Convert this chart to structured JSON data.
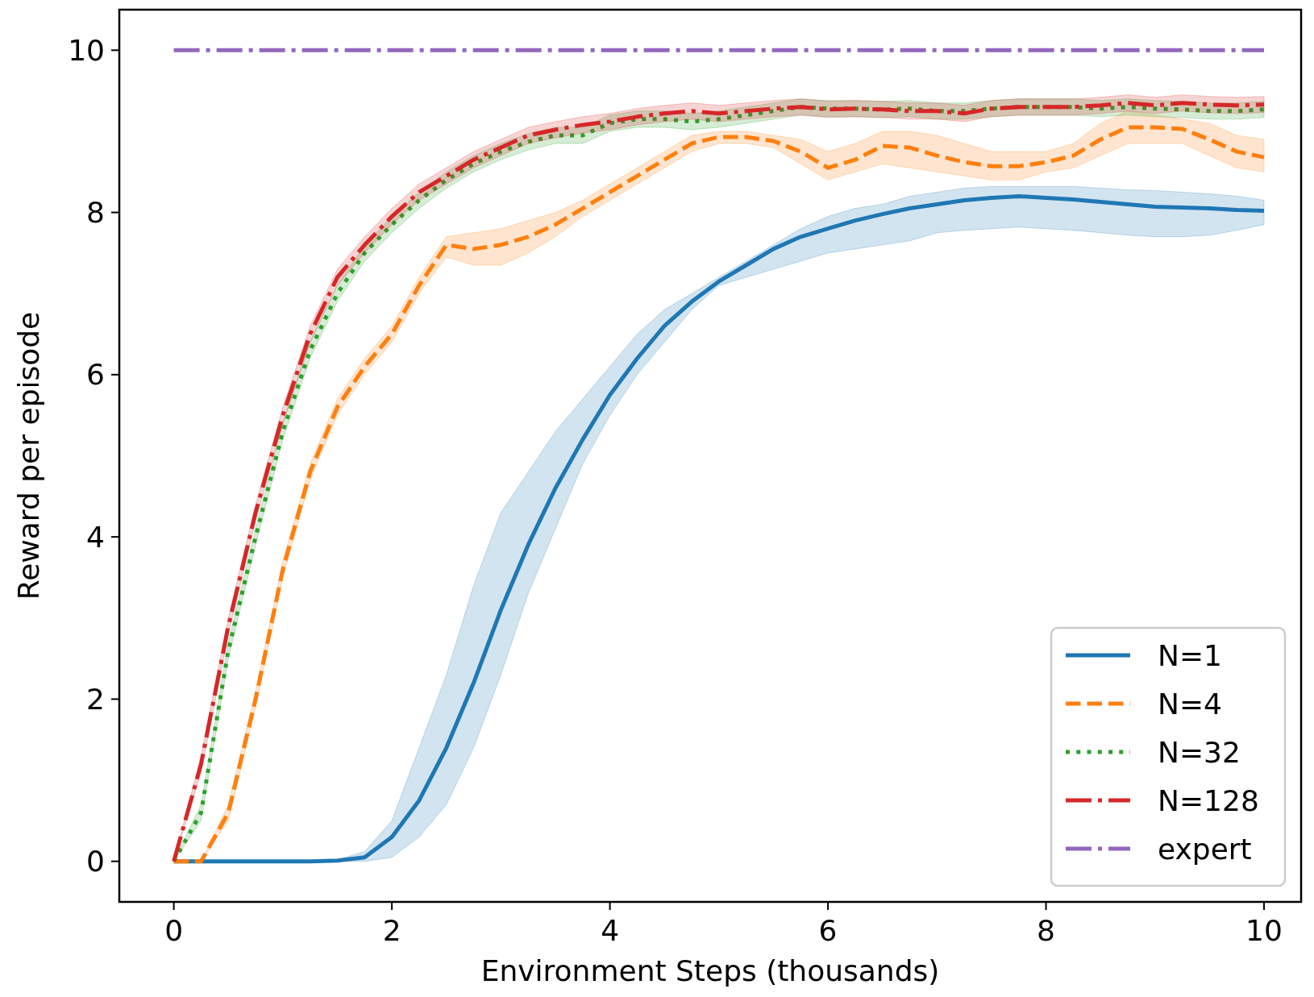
{
  "chart_data": {
    "type": "line",
    "xlabel": "Environment Steps (thousands)",
    "ylabel": "Reward per episode",
    "x": [
      0,
      0.25,
      0.5,
      0.75,
      1,
      1.25,
      1.5,
      1.75,
      2,
      2.25,
      2.5,
      2.75,
      3,
      3.25,
      3.5,
      3.75,
      4,
      4.25,
      4.5,
      4.75,
      5,
      5.25,
      5.5,
      5.75,
      6,
      6.25,
      6.5,
      6.75,
      7,
      7.25,
      7.5,
      7.75,
      8,
      8.25,
      8.5,
      8.75,
      9,
      9.25,
      9.5,
      9.75,
      10
    ],
    "xlim": [
      -0.5,
      10.34
    ],
    "ylim": [
      -0.5,
      10.5
    ],
    "xticks": [
      0,
      2,
      4,
      6,
      8,
      10
    ],
    "yticks": [
      0,
      2,
      4,
      6,
      8,
      10
    ],
    "grid": false,
    "legend": "bottom right",
    "series": [
      {
        "name": "N=1",
        "color": "#1f77b4",
        "line_style": "solid",
        "values": [
          0,
          0,
          0,
          0,
          0,
          0,
          0.01,
          0.05,
          0.3,
          0.75,
          1.4,
          2.2,
          3.1,
          3.9,
          4.6,
          5.2,
          5.75,
          6.2,
          6.6,
          6.9,
          7.15,
          7.35,
          7.55,
          7.7,
          7.8,
          7.9,
          7.98,
          8.05,
          8.1,
          8.15,
          8.18,
          8.2,
          8.18,
          8.16,
          8.13,
          8.1,
          8.07,
          8.06,
          8.05,
          8.03,
          8.02
        ],
        "lower": [
          0,
          0,
          0,
          0,
          0,
          0,
          0,
          0,
          0.05,
          0.3,
          0.7,
          1.4,
          2.3,
          3.3,
          4.1,
          4.9,
          5.5,
          6.0,
          6.4,
          6.8,
          7.1,
          7.2,
          7.3,
          7.4,
          7.5,
          7.55,
          7.6,
          7.65,
          7.75,
          7.78,
          7.8,
          7.82,
          7.8,
          7.78,
          7.75,
          7.72,
          7.7,
          7.7,
          7.72,
          7.78,
          7.85
        ],
        "upper": [
          0,
          0,
          0,
          0,
          0,
          0,
          0.02,
          0.12,
          0.5,
          1.4,
          2.3,
          3.4,
          4.3,
          4.8,
          5.3,
          5.7,
          6.1,
          6.5,
          6.8,
          7.0,
          7.2,
          7.4,
          7.6,
          7.8,
          7.95,
          8.05,
          8.1,
          8.2,
          8.25,
          8.3,
          8.32,
          8.32,
          8.32,
          8.32,
          8.3,
          8.28,
          8.27,
          8.25,
          8.23,
          8.2,
          8.15
        ]
      },
      {
        "name": "N=4",
        "color": "#ff7f0e",
        "line_style": "dashed",
        "values": [
          0,
          0,
          0.6,
          2.0,
          3.6,
          4.8,
          5.6,
          6.1,
          6.5,
          7.1,
          7.6,
          7.55,
          7.6,
          7.7,
          7.85,
          8.05,
          8.25,
          8.45,
          8.65,
          8.85,
          8.93,
          8.93,
          8.88,
          8.75,
          8.55,
          8.65,
          8.82,
          8.8,
          8.7,
          8.62,
          8.57,
          8.57,
          8.62,
          8.7,
          8.9,
          9.05,
          9.05,
          9.03,
          8.9,
          8.75,
          8.68
        ],
        "lower": [
          0,
          0,
          0.5,
          1.9,
          3.5,
          4.7,
          5.5,
          6.0,
          6.4,
          7.0,
          7.45,
          7.35,
          7.35,
          7.5,
          7.7,
          7.95,
          8.15,
          8.35,
          8.55,
          8.75,
          8.85,
          8.85,
          8.8,
          8.6,
          8.4,
          8.5,
          8.6,
          8.55,
          8.5,
          8.45,
          8.4,
          8.4,
          8.5,
          8.55,
          8.7,
          8.85,
          8.85,
          8.85,
          8.7,
          8.55,
          8.5
        ],
        "upper": [
          0,
          0,
          0.7,
          2.1,
          3.7,
          4.9,
          5.7,
          6.2,
          6.6,
          7.2,
          7.7,
          7.75,
          7.8,
          7.9,
          8.0,
          8.15,
          8.35,
          8.55,
          8.75,
          8.95,
          9.0,
          9.0,
          8.95,
          8.9,
          8.75,
          8.85,
          9.0,
          9.0,
          8.95,
          8.85,
          8.75,
          8.75,
          8.75,
          8.85,
          9.1,
          9.25,
          9.2,
          9.15,
          9.1,
          8.95,
          8.9
        ]
      },
      {
        "name": "N=32",
        "color": "#2ca02c",
        "line_style": "dotted",
        "values": [
          0,
          0.6,
          2.6,
          4.0,
          5.3,
          6.3,
          7.0,
          7.5,
          7.85,
          8.15,
          8.4,
          8.6,
          8.75,
          8.87,
          8.95,
          8.95,
          9.1,
          9.15,
          9.15,
          9.12,
          9.15,
          9.2,
          9.25,
          9.3,
          9.28,
          9.28,
          9.27,
          9.28,
          9.25,
          9.25,
          9.28,
          9.3,
          9.3,
          9.3,
          9.28,
          9.3,
          9.28,
          9.27,
          9.25,
          9.25,
          9.27
        ],
        "lower": [
          0,
          0.5,
          2.5,
          3.9,
          5.2,
          6.2,
          6.9,
          7.4,
          7.75,
          8.05,
          8.3,
          8.5,
          8.65,
          8.77,
          8.85,
          8.85,
          9.0,
          9.05,
          9.05,
          9.02,
          9.05,
          9.1,
          9.15,
          9.2,
          9.18,
          9.18,
          9.17,
          9.18,
          9.15,
          9.15,
          9.18,
          9.2,
          9.2,
          9.2,
          9.18,
          9.2,
          9.18,
          9.17,
          9.15,
          9.15,
          9.17
        ],
        "upper": [
          0,
          0.7,
          2.7,
          4.1,
          5.4,
          6.4,
          7.1,
          7.6,
          7.95,
          8.25,
          8.5,
          8.7,
          8.85,
          8.97,
          9.05,
          9.05,
          9.2,
          9.25,
          9.25,
          9.22,
          9.25,
          9.3,
          9.35,
          9.4,
          9.38,
          9.38,
          9.37,
          9.38,
          9.35,
          9.35,
          9.38,
          9.4,
          9.4,
          9.4,
          9.38,
          9.4,
          9.38,
          9.37,
          9.35,
          9.35,
          9.37
        ]
      },
      {
        "name": "N=128",
        "color": "#d62728",
        "line_style": "dashdot",
        "values": [
          0,
          1.2,
          2.9,
          4.3,
          5.5,
          6.5,
          7.2,
          7.6,
          7.95,
          8.25,
          8.45,
          8.65,
          8.8,
          8.95,
          9.02,
          9.08,
          9.12,
          9.18,
          9.22,
          9.25,
          9.22,
          9.25,
          9.28,
          9.3,
          9.27,
          9.28,
          9.27,
          9.25,
          9.25,
          9.22,
          9.28,
          9.3,
          9.3,
          9.3,
          9.32,
          9.35,
          9.32,
          9.35,
          9.33,
          9.32,
          9.33
        ],
        "lower": [
          0,
          1.1,
          2.8,
          4.2,
          5.4,
          6.4,
          7.1,
          7.5,
          7.85,
          8.15,
          8.35,
          8.55,
          8.7,
          8.85,
          8.92,
          8.98,
          9.02,
          9.08,
          9.12,
          9.15,
          9.12,
          9.15,
          9.18,
          9.2,
          9.17,
          9.18,
          9.17,
          9.15,
          9.15,
          9.12,
          9.18,
          9.2,
          9.2,
          9.2,
          9.22,
          9.25,
          9.22,
          9.25,
          9.23,
          9.22,
          9.23
        ],
        "upper": [
          0,
          1.3,
          3.0,
          4.4,
          5.6,
          6.6,
          7.3,
          7.7,
          8.05,
          8.35,
          8.55,
          8.75,
          8.9,
          9.05,
          9.12,
          9.18,
          9.22,
          9.28,
          9.32,
          9.35,
          9.32,
          9.35,
          9.38,
          9.4,
          9.37,
          9.38,
          9.37,
          9.35,
          9.35,
          9.32,
          9.38,
          9.4,
          9.4,
          9.4,
          9.42,
          9.45,
          9.42,
          9.45,
          9.43,
          9.42,
          9.43
        ]
      },
      {
        "name": "expert",
        "color": "#9467bd",
        "line_style": "dashdot",
        "x": [
          0,
          10
        ],
        "values": [
          10,
          10
        ]
      }
    ]
  }
}
